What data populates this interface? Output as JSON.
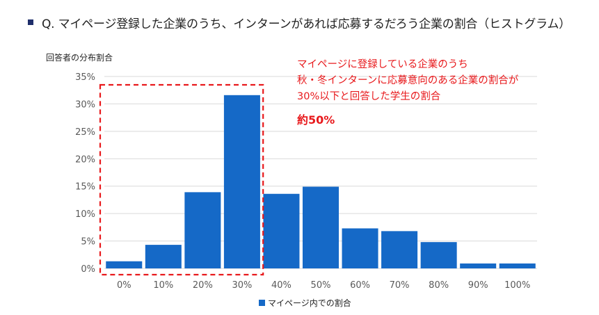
{
  "title": "Q. マイページ登録した企業のうち、インターンがあれば応募するだろう企業の割合（ヒストグラム）",
  "chart_data": {
    "type": "bar",
    "title": "Q. マイページ登録した企業のうち、インターンがあれば応募するだろう企業の割合（ヒストグラム）",
    "ylabel": "回答者の分布割合",
    "xlabel": "",
    "categories": [
      "0%",
      "10%",
      "20%",
      "30%",
      "40%",
      "50%",
      "60%",
      "70%",
      "80%",
      "90%",
      "100%"
    ],
    "series": [
      {
        "name": "マイページ内での割合",
        "values": [
          1.3,
          4.3,
          13.9,
          31.6,
          13.6,
          14.9,
          7.3,
          6.8,
          4.8,
          0.9,
          0.9
        ]
      }
    ],
    "ylim": [
      0,
      35
    ],
    "yticks": [
      "0%",
      "5%",
      "10%",
      "15%",
      "20%",
      "25%",
      "30%",
      "35%"
    ],
    "ytick_values": [
      0,
      5,
      10,
      15,
      20,
      25,
      30,
      35
    ],
    "grid": true,
    "legend_position": "bottom",
    "highlight_categories": [
      "0%",
      "10%",
      "20%",
      "30%"
    ],
    "annotation": {
      "lines": [
        "マイページに登録している企業のうち",
        "秋・冬インターンに応募意向のある企業の割合が",
        "30%以下と回答した学生の割合"
      ],
      "emphasis": "約50%"
    },
    "colors": {
      "bar": "#1569c7",
      "highlight": "#e8191c",
      "grid": "#d9d9d9"
    }
  }
}
